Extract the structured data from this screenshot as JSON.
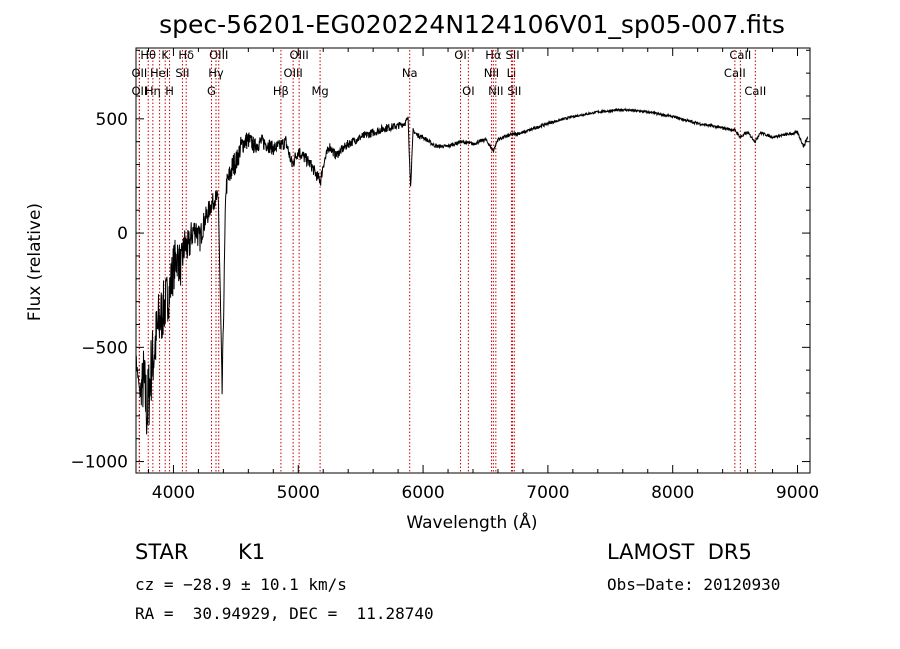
{
  "chart_data": {
    "type": "line",
    "title": "spec-56201-EG020224N124106V01_sp05-007.fits",
    "xlabel": "Wavelength (Å)",
    "ylabel": "Flux (relative)",
    "xlim": [
      3700,
      9100
    ],
    "ylim": [
      -1050,
      810
    ],
    "xticks": [
      4000,
      5000,
      6000,
      7000,
      8000,
      9000
    ],
    "xtick_labels": [
      "4000",
      "5000",
      "6000",
      "7000",
      "8000",
      "9000"
    ],
    "yticks": [
      -1000,
      -500,
      0,
      500
    ],
    "ytick_labels": [
      "−1000",
      "−500",
      "0",
      "500"
    ],
    "grid": false,
    "series": [
      {
        "x": [
          3700,
          3730,
          3760,
          3790,
          3820,
          3850,
          3880,
          3910,
          3940,
          3970,
          4000,
          4030,
          4060,
          4090,
          4120,
          4150,
          4180,
          4210,
          4240,
          4270,
          4300,
          4330,
          4360,
          4390,
          4420,
          4450,
          4480,
          4510,
          4540,
          4570,
          4600,
          4650,
          4700,
          4750,
          4800,
          4850,
          4900,
          4950,
          5000,
          5050,
          5100,
          5150,
          5180,
          5200,
          5250,
          5300,
          5400,
          5500,
          5600,
          5700,
          5800,
          5850,
          5880,
          5900,
          5920,
          5950,
          6000,
          6100,
          6200,
          6300,
          6400,
          6500,
          6563,
          6600,
          6700,
          6800,
          7000,
          7200,
          7400,
          7600,
          7800,
          8000,
          8200,
          8400,
          8500,
          8540,
          8600,
          8662,
          8700,
          8800,
          8900,
          9000,
          9050,
          9080
        ],
        "y": [
          -550,
          -700,
          -650,
          -780,
          -600,
          -500,
          -400,
          -350,
          -300,
          -250,
          -150,
          -100,
          -150,
          -50,
          -70,
          0,
          20,
          -30,
          40,
          80,
          120,
          150,
          150,
          -700,
          200,
          250,
          300,
          320,
          380,
          400,
          410,
          380,
          400,
          390,
          370,
          380,
          400,
          300,
          360,
          330,
          300,
          250,
          230,
          300,
          380,
          340,
          390,
          420,
          440,
          460,
          470,
          480,
          500,
          200,
          450,
          430,
          420,
          380,
          380,
          400,
          390,
          410,
          360,
          410,
          430,
          440,
          480,
          510,
          530,
          540,
          530,
          510,
          480,
          460,
          450,
          420,
          440,
          400,
          440,
          420,
          430,
          440,
          380,
          420
        ],
        "noise": [
          30,
          30,
          160,
          180,
          160,
          150,
          150,
          130,
          120,
          110,
          110,
          100,
          90,
          80,
          80,
          70,
          60,
          60,
          50,
          50,
          40,
          40,
          40,
          40,
          50,
          55,
          55,
          50,
          45,
          45,
          40,
          35,
          35,
          35,
          30,
          30,
          30,
          30,
          30,
          28,
          25,
          25,
          25,
          25,
          22,
          20,
          20,
          18,
          18,
          18,
          15,
          15,
          12,
          12,
          10,
          10,
          10,
          8,
          8,
          8,
          8,
          8,
          8,
          8,
          8,
          8,
          6,
          5,
          5,
          5,
          5,
          5,
          6,
          6,
          6,
          6,
          6,
          6,
          6,
          6,
          6,
          8,
          8,
          10
        ]
      }
    ],
    "line_marks": [
      {
        "name": "Hθ",
        "w": 3798,
        "row": 0
      },
      {
        "name": "OII",
        "w": 3727,
        "row": 1
      },
      {
        "name": "OII",
        "w": 3727,
        "row": 2
      },
      {
        "name": "K",
        "w": 3934,
        "row": 0
      },
      {
        "name": "HeI",
        "w": 3889,
        "row": 1
      },
      {
        "name": "Hη",
        "w": 3835,
        "row": 2
      },
      {
        "name": "H",
        "w": 3969,
        "row": 2
      },
      {
        "name": "Hδ",
        "w": 4102,
        "row": 0
      },
      {
        "name": "SII",
        "w": 4072,
        "row": 1
      },
      {
        "name": "OIII",
        "w": 4363,
        "row": 0
      },
      {
        "name": "Hγ",
        "w": 4341,
        "row": 1
      },
      {
        "name": "G",
        "w": 4305,
        "row": 2
      },
      {
        "name": "OIII",
        "w": 5007,
        "row": 0
      },
      {
        "name": "OIII",
        "w": 4959,
        "row": 1
      },
      {
        "name": "Hβ",
        "w": 4861,
        "row": 2
      },
      {
        "name": "Mg",
        "w": 5175,
        "row": 2
      },
      {
        "name": "Na",
        "w": 5893,
        "row": 1
      },
      {
        "name": "OI",
        "w": 6300,
        "row": 0
      },
      {
        "name": "OI",
        "w": 6363,
        "row": 2
      },
      {
        "name": "Hα",
        "w": 6563,
        "row": 0
      },
      {
        "name": "NII",
        "w": 6548,
        "row": 1
      },
      {
        "name": "NII",
        "w": 6583,
        "row": 2
      },
      {
        "name": "SII",
        "w": 6717,
        "row": 0
      },
      {
        "name": "Li",
        "w": 6708,
        "row": 1
      },
      {
        "name": "SII",
        "w": 6731,
        "row": 2
      },
      {
        "name": "CaII",
        "w": 8542,
        "row": 0
      },
      {
        "name": "CaII",
        "w": 8498,
        "row": 1
      },
      {
        "name": "CaII",
        "w": 8662,
        "row": 2
      }
    ]
  },
  "info": {
    "object_class": "STAR",
    "subclass": "K1",
    "survey": "LAMOST  DR5",
    "cz": "cz = −28.9 ± 10.1 km/s",
    "obs_date": "Obs−Date: 20120930",
    "radec": "RA =  30.94929, DEC =  11.28740"
  },
  "colors": {
    "spectrum": "#000000",
    "line_marks": "#cc0000",
    "axes": "#000000"
  }
}
